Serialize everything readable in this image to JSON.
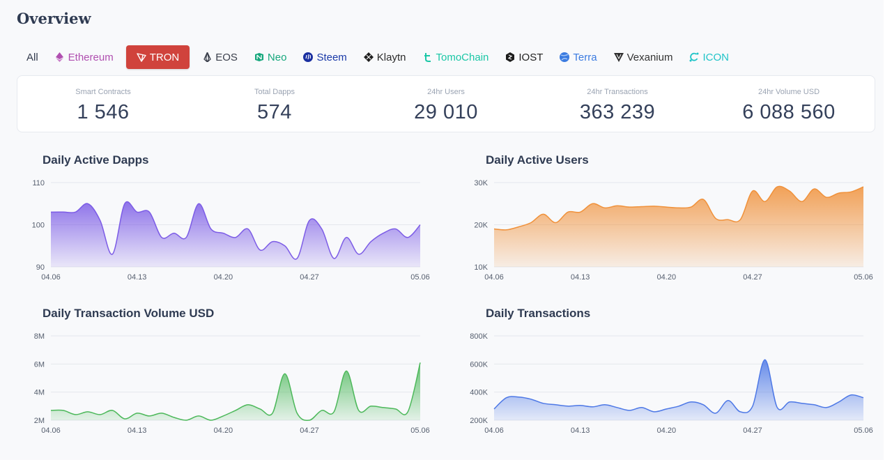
{
  "page": {
    "title": "Overview"
  },
  "tabs": [
    {
      "label": "All",
      "icon": "",
      "color": "#333b4d",
      "active": false
    },
    {
      "label": "Ethereum",
      "icon": "ethereum-icon",
      "color": "#b04fb0",
      "active": false
    },
    {
      "label": "TRON",
      "icon": "tron-icon",
      "color": "#ffffff",
      "active": true
    },
    {
      "label": "EOS",
      "icon": "eos-icon",
      "color": "#3a3f4b",
      "active": false
    },
    {
      "label": "Neo",
      "icon": "neo-icon",
      "color": "#16a77c",
      "active": false
    },
    {
      "label": "Steem",
      "icon": "steem-icon",
      "color": "#1a3aa8",
      "active": false
    },
    {
      "label": "Klaytn",
      "icon": "klaytn-icon",
      "color": "#2b2b2b",
      "active": false
    },
    {
      "label": "TomoChain",
      "icon": "tomochain-icon",
      "color": "#1bc7a6",
      "active": false
    },
    {
      "label": "IOST",
      "icon": "iost-icon",
      "color": "#222222",
      "active": false
    },
    {
      "label": "Terra",
      "icon": "terra-icon",
      "color": "#3b7be0",
      "active": false
    },
    {
      "label": "Vexanium",
      "icon": "vexanium-icon",
      "color": "#333333",
      "active": false
    },
    {
      "label": "ICON",
      "icon": "icon-network-icon",
      "color": "#20c4c8",
      "active": false
    }
  ],
  "stats": [
    {
      "label": "Smart Contracts",
      "value": "1 546"
    },
    {
      "label": "Total Dapps",
      "value": "574"
    },
    {
      "label": "24hr Users",
      "value": "29 010"
    },
    {
      "label": "24hr Transactions",
      "value": "363 239"
    },
    {
      "label": "24hr Volume USD",
      "value": "6 088 560"
    }
  ],
  "chart_data": [
    {
      "type": "area",
      "title": "Daily Active Dapps",
      "color": "#7c5ce6",
      "x_labels": [
        "04.06",
        "04.13",
        "04.20",
        "04.27",
        "05.06"
      ],
      "x_label_index": [
        0,
        7,
        14,
        21,
        30
      ],
      "ylim": [
        90,
        110
      ],
      "y_ticks": [
        110,
        100,
        90
      ],
      "y_tick_labels": [
        "110",
        "100",
        "90"
      ],
      "values": [
        103,
        103,
        103,
        105,
        101,
        93,
        105,
        103,
        103,
        97,
        98,
        97,
        105,
        99,
        98,
        97,
        99,
        94,
        96,
        95,
        92,
        101,
        99,
        92,
        97,
        93,
        96,
        98,
        99,
        97,
        100
      ]
    },
    {
      "type": "area",
      "title": "Daily Active Users",
      "color": "#f0913a",
      "x_labels": [
        "04.06",
        "04.13",
        "04.20",
        "04.27",
        "05.06"
      ],
      "x_label_index": [
        0,
        7,
        14,
        21,
        30
      ],
      "ylim": [
        10000,
        30000
      ],
      "y_ticks": [
        30000,
        20000,
        10000
      ],
      "y_tick_labels": [
        "30K",
        "20K",
        "10K"
      ],
      "values": [
        19000,
        18800,
        19500,
        20500,
        22500,
        20500,
        23000,
        23000,
        25000,
        24000,
        24500,
        24200,
        24300,
        24400,
        24200,
        24000,
        24200,
        26000,
        21500,
        21200,
        21200,
        28000,
        25500,
        29000,
        28000,
        25500,
        28500,
        26500,
        27500,
        27800,
        29000
      ]
    },
    {
      "type": "area",
      "title": "Daily Transaction Volume USD",
      "color": "#4cb85a",
      "x_labels": [
        "04.06",
        "04.13",
        "04.20",
        "04.27",
        "05.06"
      ],
      "x_label_index": [
        0,
        7,
        14,
        21,
        30
      ],
      "ylim": [
        2000000,
        8000000
      ],
      "y_ticks": [
        8000000,
        6000000,
        4000000,
        2000000
      ],
      "y_tick_labels": [
        "8M",
        "6M",
        "4M",
        "2M"
      ],
      "values": [
        2700000,
        2700000,
        2400000,
        2600000,
        2400000,
        2700000,
        2100000,
        2500000,
        2300000,
        2500000,
        2200000,
        2000000,
        2300000,
        2000000,
        2300000,
        2700000,
        3100000,
        2800000,
        2500000,
        5300000,
        2500000,
        2000000,
        2700000,
        2600000,
        5500000,
        2700000,
        3000000,
        2900000,
        2800000,
        2600000,
        6100000
      ]
    },
    {
      "type": "area",
      "title": "Daily Transactions",
      "color": "#4d78e6",
      "x_labels": [
        "04.06",
        "04.13",
        "04.20",
        "04.27",
        "05.06"
      ],
      "x_label_index": [
        0,
        7,
        14,
        21,
        30
      ],
      "ylim": [
        200000,
        800000
      ],
      "y_ticks": [
        800000,
        600000,
        400000,
        200000
      ],
      "y_tick_labels": [
        "800K",
        "600K",
        "400K",
        "200K"
      ],
      "values": [
        280000,
        360000,
        365000,
        350000,
        320000,
        310000,
        300000,
        305000,
        295000,
        310000,
        290000,
        270000,
        290000,
        260000,
        280000,
        300000,
        330000,
        310000,
        250000,
        340000,
        260000,
        300000,
        630000,
        290000,
        330000,
        320000,
        310000,
        290000,
        330000,
        380000,
        360000
      ]
    }
  ]
}
